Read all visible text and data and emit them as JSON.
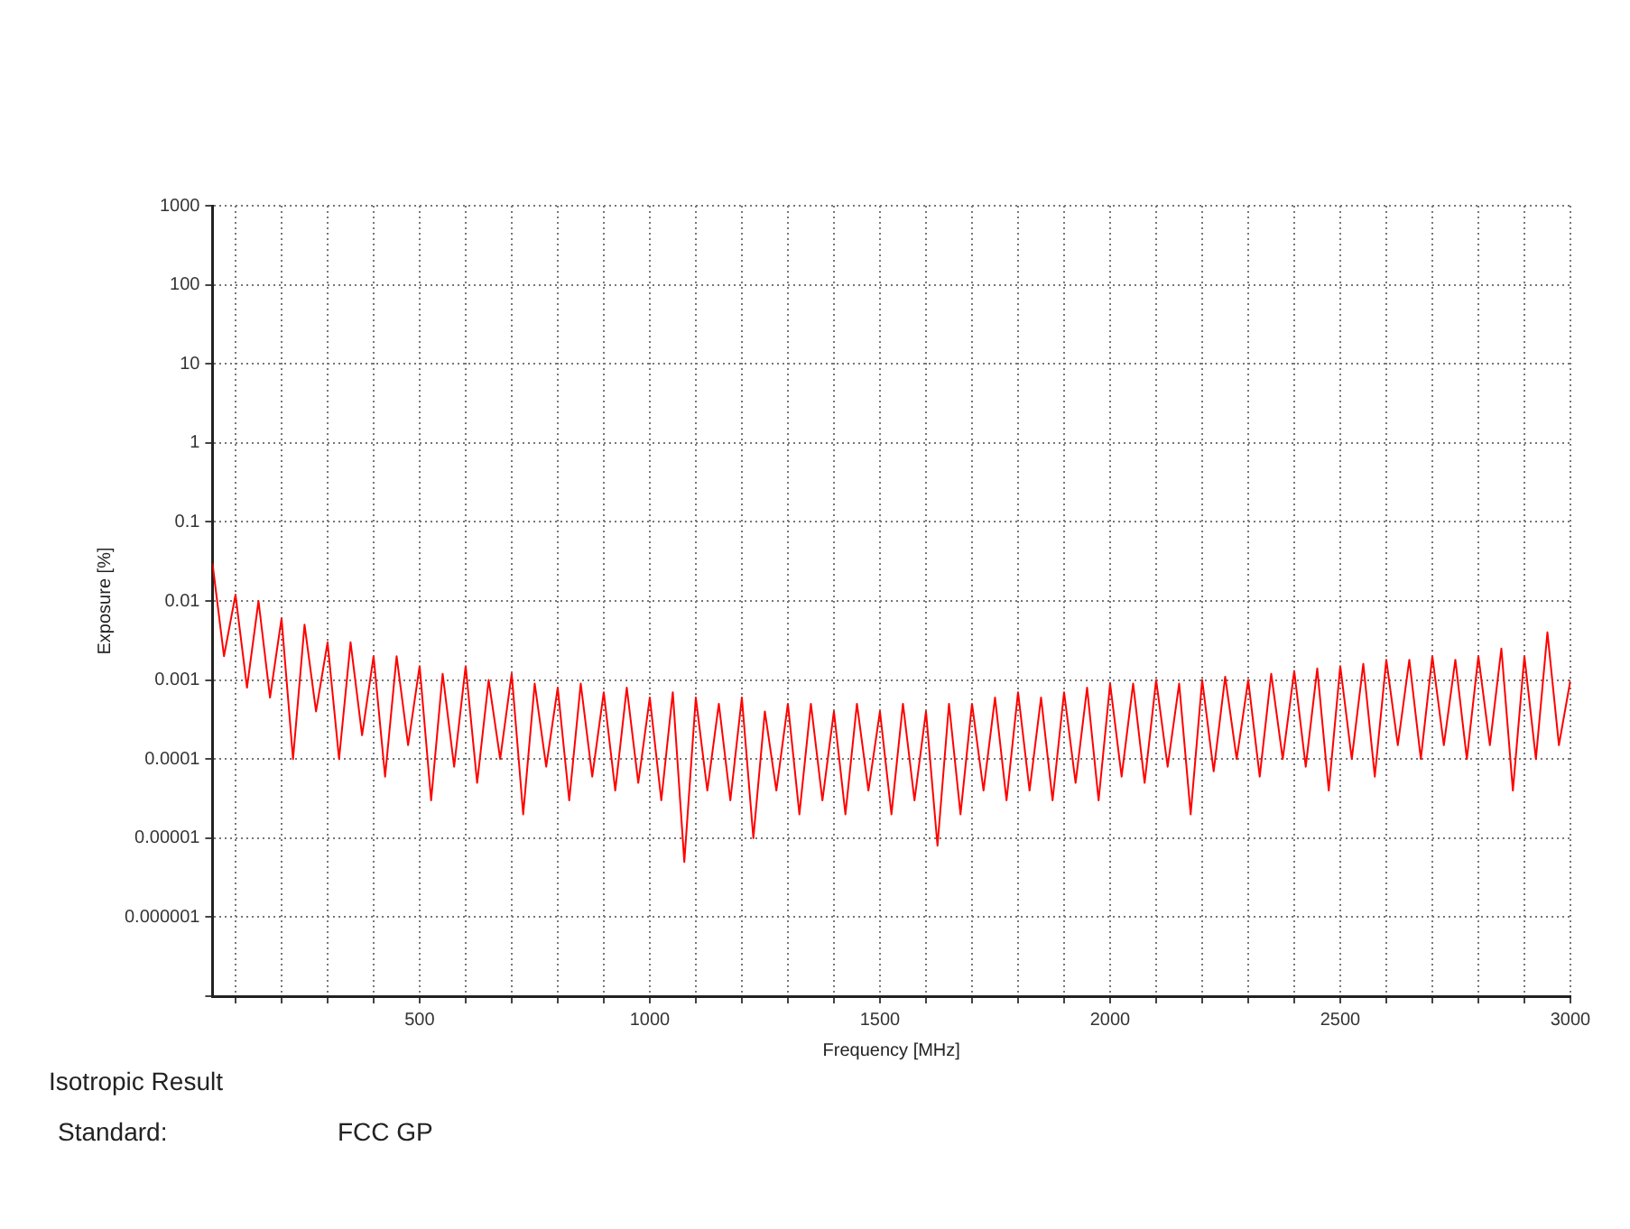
{
  "chart_data": {
    "type": "line",
    "xlabel": "Frequency [MHz]",
    "ylabel": "Exposure [%]",
    "log": "y",
    "grid": true,
    "legend": false,
    "xlim": [
      50,
      3000
    ],
    "ylim": [
      1e-07,
      1000
    ],
    "xticks": [
      {
        "value": 100,
        "label": null
      },
      {
        "value": 200,
        "label": null
      },
      {
        "value": 300,
        "label": null
      },
      {
        "value": 400,
        "label": null
      },
      500,
      {
        "value": 600,
        "label": null
      },
      {
        "value": 700,
        "label": null
      },
      {
        "value": 800,
        "label": null
      },
      {
        "value": 900,
        "label": null
      },
      1000,
      {
        "value": 1100,
        "label": null
      },
      {
        "value": 1200,
        "label": null
      },
      {
        "value": 1300,
        "label": null
      },
      {
        "value": 1400,
        "label": null
      },
      1500,
      {
        "value": 1600,
        "label": null
      },
      {
        "value": 1700,
        "label": null
      },
      {
        "value": 1800,
        "label": null
      },
      {
        "value": 1900,
        "label": null
      },
      2000,
      {
        "value": 2100,
        "label": null
      },
      {
        "value": 2200,
        "label": null
      },
      {
        "value": 2300,
        "label": null
      },
      {
        "value": 2400,
        "label": null
      },
      2500,
      {
        "value": 2600,
        "label": null
      },
      {
        "value": 2700,
        "label": null
      },
      {
        "value": 2800,
        "label": null
      },
      {
        "value": 2900,
        "label": null
      },
      3000
    ],
    "yticks": [
      {
        "value": 1e-07,
        "label": null
      },
      {
        "value": 1e-06,
        "label": "0.000001"
      },
      {
        "value": 1e-05,
        "label": "0.00001"
      },
      0.0001,
      0.001,
      0.01,
      0.1,
      1,
      10,
      100,
      1000
    ],
    "x": [
      50,
      75,
      100,
      125,
      150,
      175,
      200,
      225,
      250,
      275,
      300,
      325,
      350,
      375,
      400,
      425,
      450,
      475,
      500,
      525,
      550,
      575,
      600,
      625,
      650,
      675,
      700,
      725,
      750,
      775,
      800,
      825,
      850,
      875,
      900,
      925,
      950,
      975,
      1000,
      1025,
      1050,
      1075,
      1100,
      1125,
      1150,
      1175,
      1200,
      1225,
      1250,
      1275,
      1300,
      1325,
      1350,
      1375,
      1400,
      1425,
      1450,
      1475,
      1500,
      1525,
      1550,
      1575,
      1600,
      1625,
      1650,
      1675,
      1700,
      1725,
      1750,
      1775,
      1800,
      1825,
      1850,
      1875,
      1900,
      1925,
      1950,
      1975,
      2000,
      2025,
      2050,
      2075,
      2100,
      2125,
      2150,
      2175,
      2200,
      2225,
      2250,
      2275,
      2300,
      2325,
      2350,
      2375,
      2400,
      2425,
      2450,
      2475,
      2500,
      2525,
      2550,
      2575,
      2600,
      2625,
      2650,
      2675,
      2700,
      2725,
      2750,
      2775,
      2800,
      2825,
      2850,
      2875,
      2900,
      2925,
      2950,
      2975,
      3000
    ],
    "series": [
      {
        "color": "#ff0000",
        "values": [
          0.03,
          0.002,
          0.012,
          0.0008,
          0.01,
          0.0006,
          0.006,
          0.0001,
          0.005,
          0.0004,
          0.003,
          0.0001,
          0.003,
          0.0002,
          0.002,
          6e-05,
          0.002,
          0.00015,
          0.0015,
          3e-05,
          0.0012,
          8e-05,
          0.0015,
          5e-05,
          0.001,
          0.0001,
          0.0012,
          2e-05,
          0.0009,
          8e-05,
          0.0008,
          3e-05,
          0.0009,
          6e-05,
          0.0007,
          4e-05,
          0.0008,
          5e-05,
          0.0006,
          3e-05,
          0.0007,
          5e-06,
          0.0006,
          4e-05,
          0.0005,
          3e-05,
          0.0006,
          1e-05,
          0.0004,
          4e-05,
          0.0005,
          2e-05,
          0.0005,
          3e-05,
          0.0004,
          2e-05,
          0.0005,
          4e-05,
          0.0004,
          2e-05,
          0.0005,
          3e-05,
          0.0004,
          8e-06,
          0.0005,
          2e-05,
          0.0005,
          4e-05,
          0.0006,
          3e-05,
          0.0007,
          4e-05,
          0.0006,
          3e-05,
          0.0007,
          5e-05,
          0.0008,
          3e-05,
          0.0009,
          6e-05,
          0.0009,
          5e-05,
          0.001,
          8e-05,
          0.0009,
          2e-05,
          0.001,
          7e-05,
          0.0011,
          0.0001,
          0.001,
          6e-05,
          0.0012,
          0.0001,
          0.0013,
          8e-05,
          0.0014,
          4e-05,
          0.0015,
          0.0001,
          0.0016,
          6e-05,
          0.0018,
          0.00015,
          0.0018,
          0.0001,
          0.002,
          0.00015,
          0.0018,
          0.0001,
          0.002,
          0.00015,
          0.0025,
          4e-05,
          0.002,
          0.0001,
          0.004,
          0.00015,
          0.001
        ]
      }
    ],
    "annotations": [
      "Isotropic Result",
      "Standard:",
      "FCC GP"
    ]
  }
}
